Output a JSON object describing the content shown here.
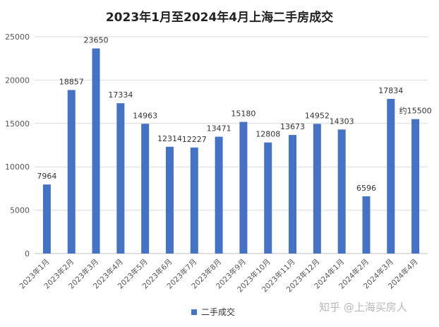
{
  "chart_data": {
    "type": "bar",
    "title": "2023年1月至2024年4月上海二手房成交",
    "categories": [
      "2023年1月",
      "2023年2月",
      "2023年3月",
      "2023年4月",
      "2023年5月",
      "2023年6月",
      "2023年7月",
      "2023年8月",
      "2023年9月",
      "2023年10月",
      "2023年11月",
      "2023年12月",
      "2024年1月",
      "2024年2月",
      "2024年3月",
      "2024年4月"
    ],
    "series": [
      {
        "name": "二手成交",
        "values": [
          7964,
          18857,
          23650,
          17334,
          14963,
          12314,
          12227,
          13471,
          15180,
          12808,
          13673,
          14952,
          14303,
          6596,
          17834,
          15500
        ],
        "labels": [
          "7964",
          "18857",
          "23650",
          "17334",
          "14963",
          "12314",
          "12227",
          "13471",
          "15180",
          "12808",
          "13673",
          "14952",
          "14303",
          "6596",
          "17834",
          "约15500"
        ]
      }
    ],
    "ylim": [
      0,
      25000
    ],
    "yticks": [
      0,
      5000,
      10000,
      15000,
      20000,
      25000
    ],
    "xlabel": "",
    "ylabel": "",
    "grid": true,
    "legend_position": "bottom",
    "color": "#4472C4"
  },
  "watermark": "知乎 @上海买房人"
}
